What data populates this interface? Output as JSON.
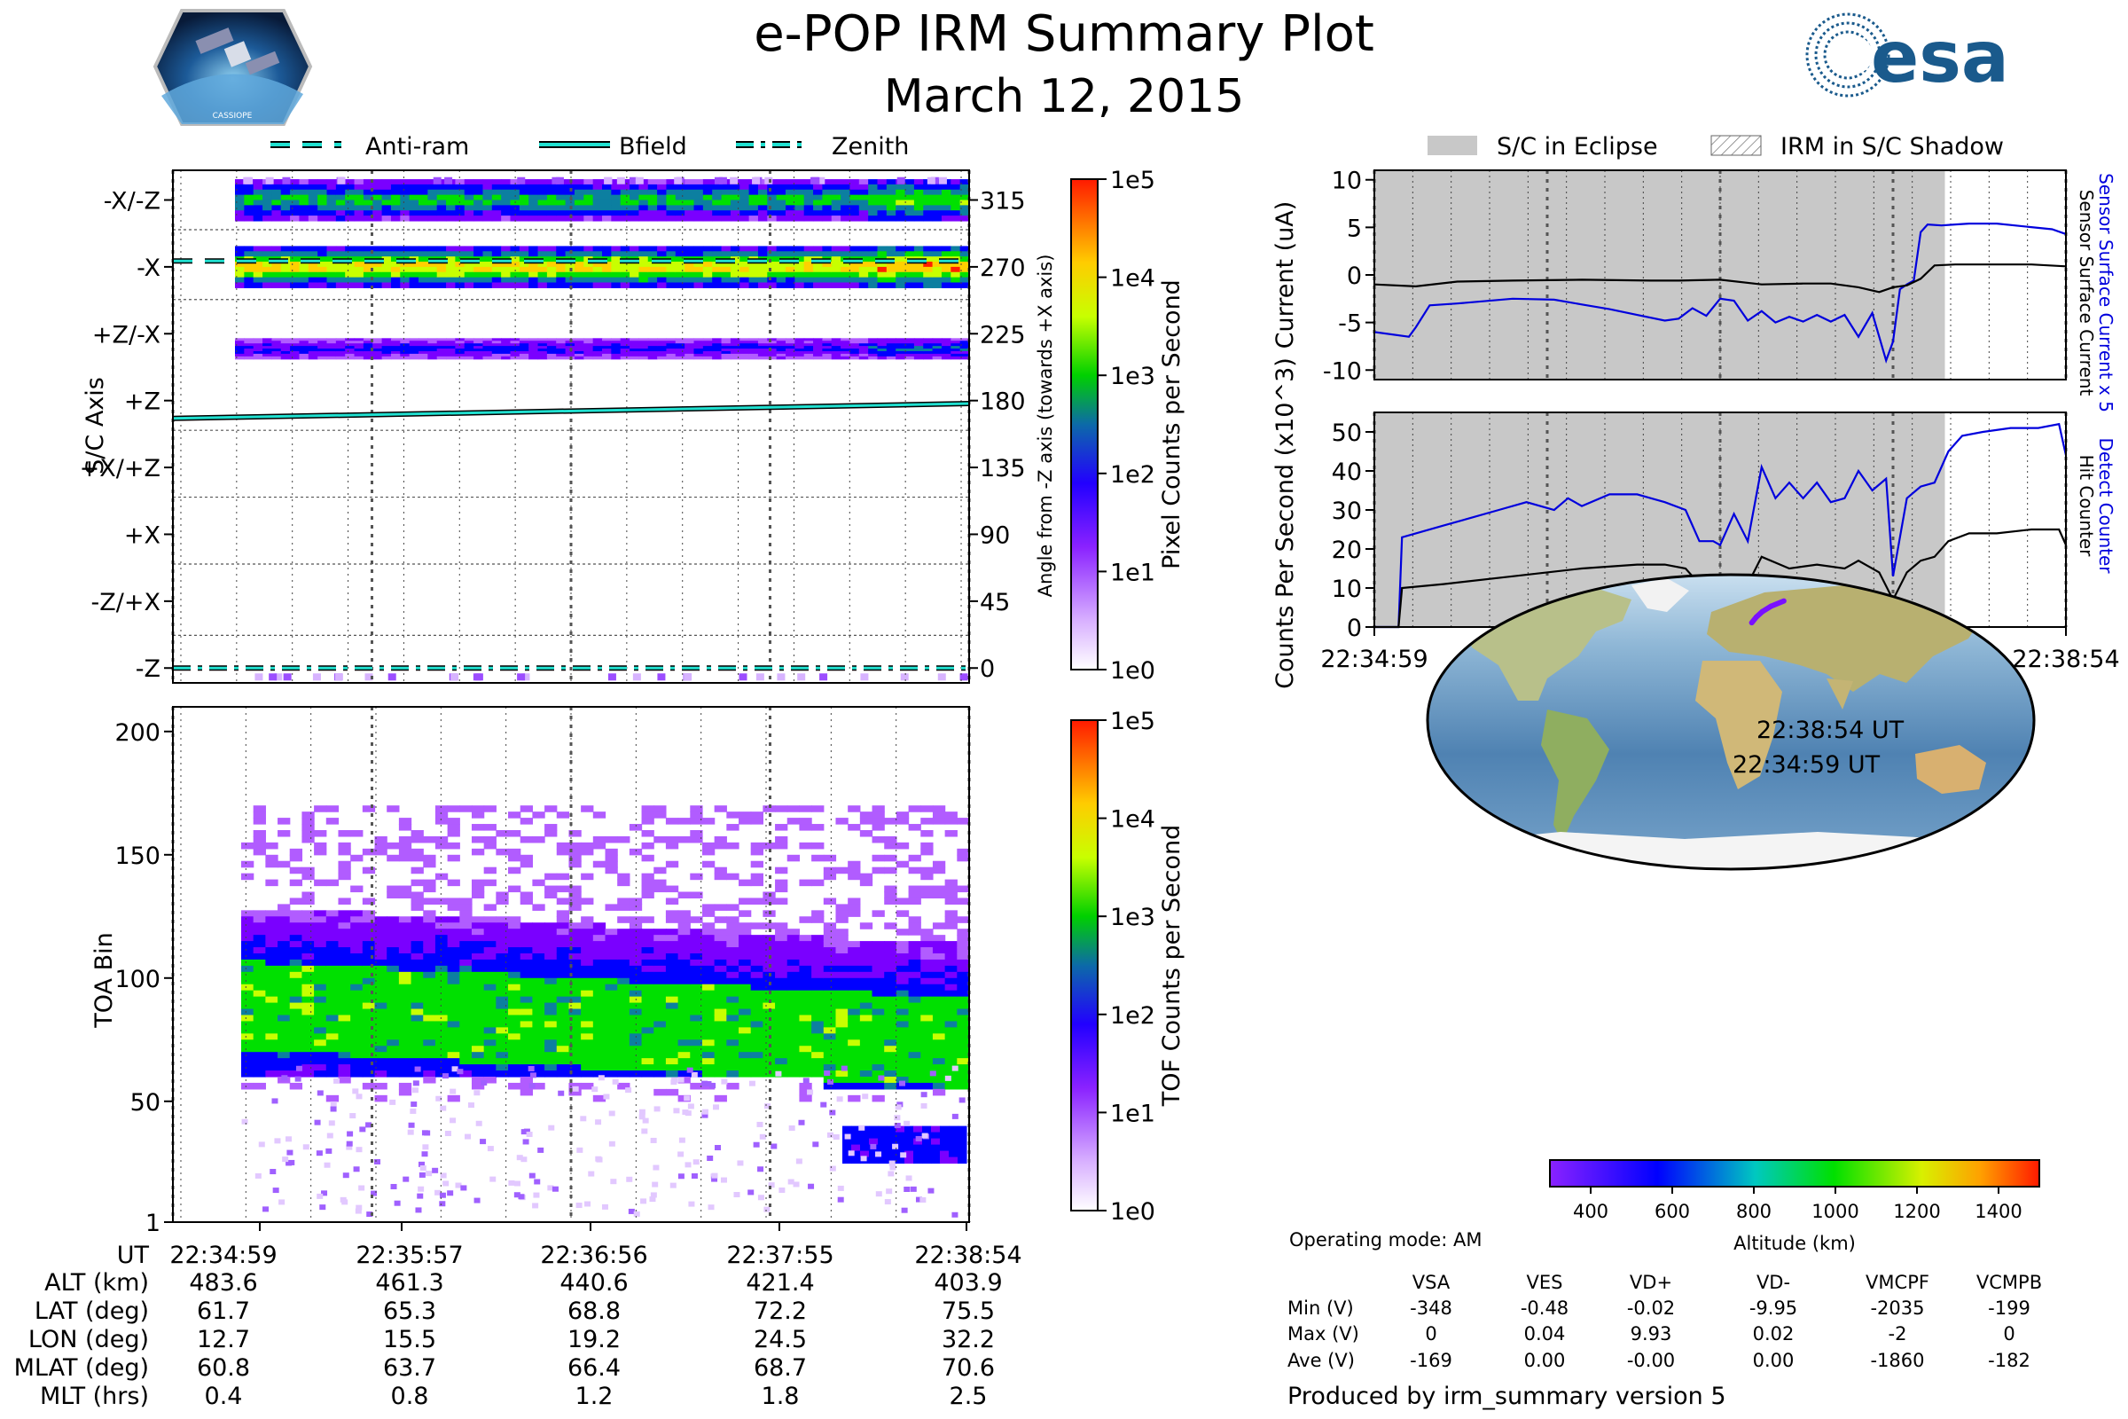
{
  "title": "e-POP IRM Summary Plot",
  "date": "March 12, 2015",
  "logos": {
    "mission_badge": "CASSIOPE",
    "agency": "esa"
  },
  "left_legend": [
    "Anti-ram",
    "Bfield",
    "Zenith"
  ],
  "right_legend": [
    "S/C in Eclipse",
    "IRM in S/C Shadow"
  ],
  "time_ticks": [
    "22:34:59",
    "22:35:57",
    "22:36:56",
    "22:37:55",
    "22:38:54"
  ],
  "ephemeris": {
    "labels": [
      "UT",
      "ALT (km)",
      "LAT (deg)",
      "LON (deg)",
      "MLAT (deg)",
      "MLT (hrs)"
    ],
    "rows": [
      [
        "483.6",
        "461.3",
        "440.6",
        "421.4",
        "403.9"
      ],
      [
        "61.7",
        "65.3",
        "68.8",
        "72.2",
        "75.5"
      ],
      [
        "12.7",
        "15.5",
        "19.2",
        "24.5",
        "32.2"
      ],
      [
        "60.8",
        "63.7",
        "66.4",
        "68.7",
        "70.6"
      ],
      [
        "0.4",
        "0.8",
        "1.2",
        "1.8",
        "2.5"
      ]
    ]
  },
  "voltages": {
    "mode": "Operating mode: AM",
    "columns": [
      "VSA",
      "VES",
      "VD+",
      "VD-",
      "VMCPF",
      "VCMPB"
    ],
    "rows": [
      {
        "label": "Min (V)",
        "values": [
          "-348",
          "-0.48",
          "-0.02",
          "-9.95",
          "-2035",
          "-199"
        ]
      },
      {
        "label": "Max (V)",
        "values": [
          "0",
          "0.04",
          "9.93",
          "0.02",
          "-2",
          "0"
        ]
      },
      {
        "label": "Ave (V)",
        "values": [
          "-169",
          "0.00",
          "-0.00",
          "0.00",
          "-1860",
          "-182"
        ]
      }
    ]
  },
  "footer": "Produced by irm_summary version 5",
  "colormap": [
    "#ffffff",
    "#b15cff",
    "#7a00ff",
    "#0000ff",
    "#0c7fa0",
    "#00e000",
    "#c8ff00",
    "#ffd000",
    "#ff2000"
  ],
  "chart_data": [
    {
      "type": "heatmap",
      "name": "sc-axis-panel",
      "ylabel": "S/C Axis",
      "y2label": "Angle from -Z axis (towards +X axis)",
      "ylim": [
        -10,
        335
      ],
      "left_ticks": [
        {
          "label": "-X/-Z",
          "angle": 315
        },
        {
          "label": "-X",
          "angle": 270
        },
        {
          "label": "+Z/-X",
          "angle": 225
        },
        {
          "label": "+Z",
          "angle": 180
        },
        {
          "label": "+X/+Z",
          "angle": 135
        },
        {
          "label": "+X",
          "angle": 90
        },
        {
          "label": "-Z/+X",
          "angle": 45
        },
        {
          "label": "-Z",
          "angle": 0
        }
      ],
      "right_ticks": [
        315,
        270,
        225,
        180,
        135,
        90,
        45,
        0
      ],
      "bands": [
        {
          "center_deg": 315,
          "width_deg": 28,
          "peak_level": 5
        },
        {
          "center_deg": 270,
          "width_deg": 28,
          "peak_level": 7
        },
        {
          "center_deg": 215,
          "width_deg": 14,
          "peak_level": 3
        }
      ],
      "lines": [
        {
          "name": "Anti-ram",
          "style": "dashed",
          "angle_start": 274,
          "angle_end": 274
        },
        {
          "name": "Bfield",
          "style": "solid",
          "angle_start": 168,
          "angle_end": 178
        },
        {
          "name": "Zenith",
          "style": "dashdot",
          "angle_start": 0,
          "angle_end": 0
        }
      ],
      "colorbar": {
        "label": "Pixel Counts per Second",
        "ticks": [
          "1e5",
          "1e4",
          "1e3",
          "1e2",
          "1e1",
          "1e0"
        ]
      }
    },
    {
      "type": "heatmap",
      "name": "toa-panel",
      "ylabel": "TOA Bin",
      "yticks": [
        "200",
        "150",
        "100",
        "50",
        "1"
      ],
      "ytick_values": [
        200,
        150,
        100,
        50,
        1
      ],
      "ylim": [
        1,
        210
      ],
      "band": {
        "center_start": 90,
        "center_end": 75,
        "green_half_width": 18,
        "blue_half_width": 40,
        "low_edge": 62
      },
      "colorbar": {
        "label": "TOF Counts per Second",
        "ticks": [
          "1e5",
          "1e4",
          "1e3",
          "1e2",
          "1e1",
          "1e0"
        ]
      }
    },
    {
      "type": "line",
      "name": "current-panel",
      "ylabel": "Current (uA)",
      "y2label_blue": "Sensor Surface Current x 5",
      "y2label_black": "Sensor Surface Current",
      "ylim": [
        -11,
        11
      ],
      "yticks": [
        10,
        5,
        0,
        -5,
        -10
      ],
      "eclipse_end_fraction": 0.825,
      "series": [
        {
          "name": "Sensor Surface Current x 5",
          "color": "#0000dd",
          "x": [
            0,
            0.05,
            0.06,
            0.08,
            0.12,
            0.2,
            0.26,
            0.3,
            0.34,
            0.38,
            0.42,
            0.44,
            0.46,
            0.48,
            0.5,
            0.52,
            0.54,
            0.56,
            0.58,
            0.6,
            0.62,
            0.64,
            0.66,
            0.68,
            0.7,
            0.72,
            0.74,
            0.75,
            0.76,
            0.77,
            0.78,
            0.79,
            0.8,
            0.82,
            0.84,
            0.86,
            0.9,
            0.94,
            0.98,
            1.0
          ],
          "y": [
            -6,
            -6.5,
            -5.5,
            -3.2,
            -3,
            -2.5,
            -2.6,
            -3.1,
            -3.6,
            -4.2,
            -4.8,
            -4.6,
            -3.5,
            -4.3,
            -2.5,
            -2.7,
            -4.8,
            -3.8,
            -5,
            -4.4,
            -4.9,
            -4.2,
            -4.9,
            -4.2,
            -6.5,
            -4,
            -9,
            -7,
            -1.5,
            -1,
            -0.6,
            4.5,
            5.3,
            5.2,
            5.3,
            5.4,
            5.4,
            5.1,
            4.8,
            4.3
          ]
        },
        {
          "name": "Sensor Surface Current",
          "color": "#000000",
          "x": [
            0,
            0.06,
            0.12,
            0.2,
            0.3,
            0.4,
            0.44,
            0.5,
            0.56,
            0.62,
            0.66,
            0.7,
            0.73,
            0.75,
            0.77,
            0.79,
            0.81,
            0.84,
            0.9,
            0.95,
            1.0
          ],
          "y": [
            -1,
            -1.2,
            -0.7,
            -0.6,
            -0.5,
            -0.6,
            -0.6,
            -0.5,
            -1,
            -0.9,
            -0.9,
            -1.3,
            -1.8,
            -1.3,
            -1.1,
            -0.4,
            1,
            1.1,
            1.1,
            1.1,
            0.9
          ]
        }
      ]
    },
    {
      "type": "line",
      "name": "counts-panel",
      "ylabel": "Counts Per Second (x10^3)",
      "y2label_blue": "Detect Counter",
      "y2label_black": "Hit Counter",
      "ylim": [
        0,
        55
      ],
      "yticks": [
        50,
        40,
        30,
        20,
        10,
        0
      ],
      "eclipse_end_fraction": 0.825,
      "series": [
        {
          "name": "Detect Counter",
          "color": "#0000dd",
          "x": [
            0,
            0.035,
            0.04,
            0.06,
            0.1,
            0.14,
            0.18,
            0.22,
            0.26,
            0.28,
            0.3,
            0.34,
            0.38,
            0.4,
            0.42,
            0.45,
            0.47,
            0.49,
            0.5,
            0.52,
            0.54,
            0.56,
            0.58,
            0.6,
            0.62,
            0.64,
            0.66,
            0.68,
            0.7,
            0.72,
            0.74,
            0.75,
            0.77,
            0.79,
            0.81,
            0.83,
            0.85,
            0.88,
            0.92,
            0.96,
            0.99,
            1.0
          ],
          "y": [
            0,
            0,
            23,
            24,
            26,
            28,
            30,
            32,
            30,
            33,
            31,
            34,
            34,
            33,
            32,
            30,
            22,
            22,
            21,
            29,
            22,
            41,
            33,
            37,
            33,
            37,
            32,
            33,
            40,
            35,
            38,
            13,
            33,
            36,
            37,
            45,
            49,
            50,
            51,
            51,
            52,
            44
          ]
        },
        {
          "name": "Hit Counter",
          "color": "#000000",
          "x": [
            0,
            0.035,
            0.04,
            0.1,
            0.2,
            0.3,
            0.38,
            0.42,
            0.45,
            0.47,
            0.49,
            0.5,
            0.54,
            0.56,
            0.6,
            0.64,
            0.68,
            0.7,
            0.73,
            0.75,
            0.77,
            0.79,
            0.81,
            0.83,
            0.86,
            0.9,
            0.95,
            0.99,
            1.0
          ],
          "y": [
            0,
            0,
            10,
            11,
            13,
            15,
            16,
            16,
            15,
            11,
            11,
            10,
            11,
            18,
            15,
            16,
            15,
            17,
            14,
            7,
            14,
            17,
            18,
            22,
            24,
            24,
            25,
            25,
            21
          ]
        }
      ]
    },
    {
      "type": "scatter",
      "name": "orbit-map",
      "track_label_start": "22:34:59 UT",
      "track_label_end": "22:38:54 UT",
      "track": {
        "lon": [
          12.7,
          15.5,
          19.2,
          24.5,
          32.2
        ],
        "lat": [
          61.7,
          65.3,
          68.8,
          72.2,
          75.5
        ],
        "alt": [
          483.6,
          461.3,
          440.6,
          421.4,
          403.9
        ]
      },
      "colorbar": {
        "label": "Altitude (km)",
        "ticks": [
          "400",
          "600",
          "800",
          "1000",
          "1200",
          "1400"
        ],
        "range": [
          300,
          1500
        ]
      }
    }
  ]
}
